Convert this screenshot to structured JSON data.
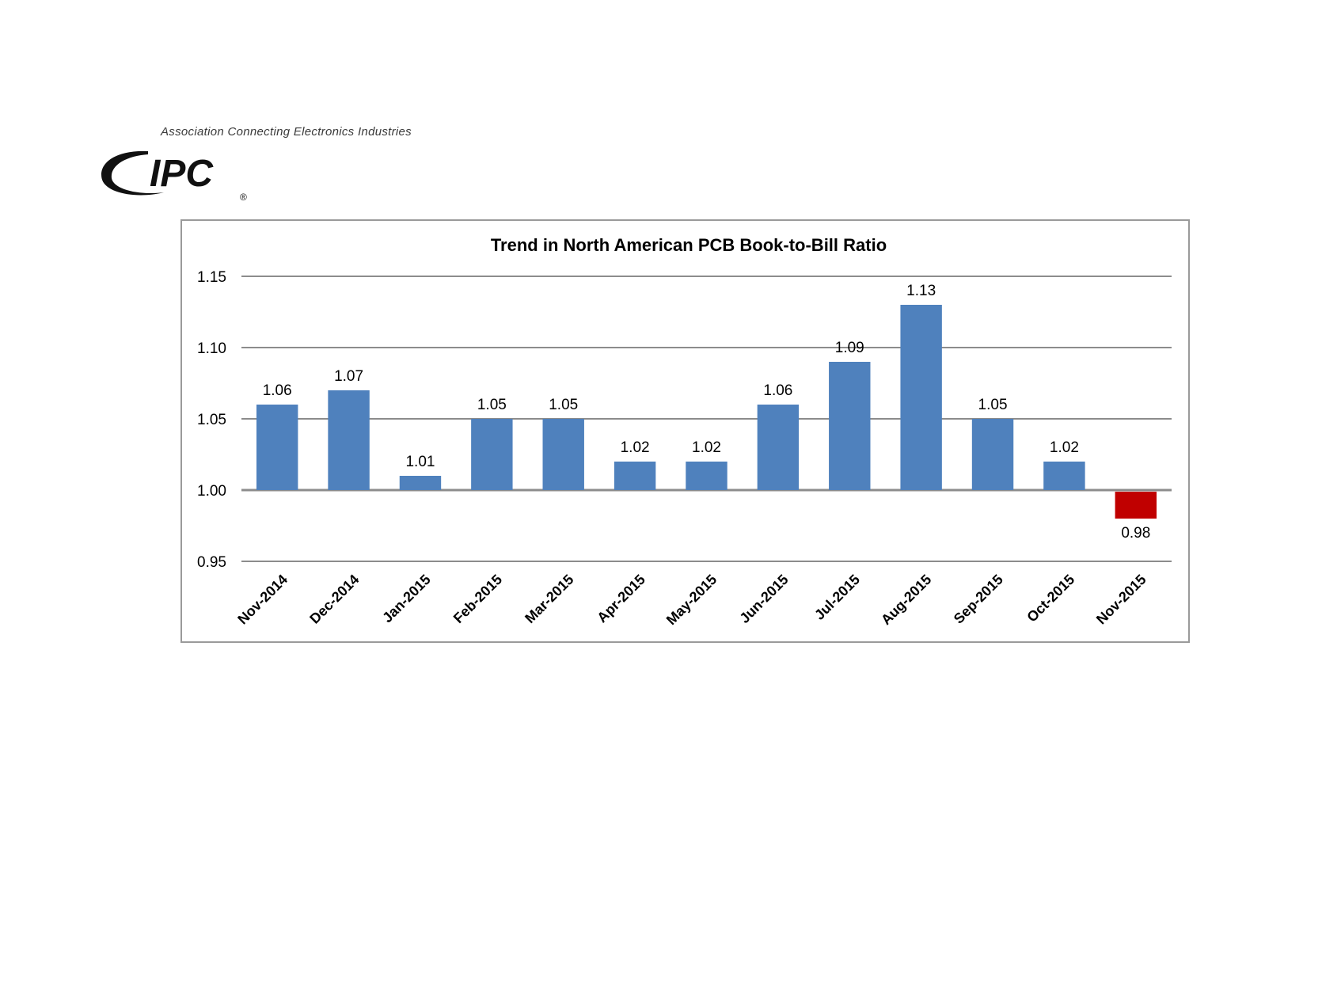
{
  "logo": {
    "tagline": "Association Connecting Electronics Industries",
    "wordmark": "IPC",
    "registered": "®"
  },
  "colors": {
    "bar": "#4f81bd",
    "bar_negative": "#c00000",
    "grid": "#8c8c8c",
    "frame": "#9a9a9a",
    "text": "#000000"
  },
  "chart_data": {
    "type": "bar",
    "title": "Trend in North American PCB Book-to-Bill Ratio",
    "xlabel": "",
    "ylabel": "",
    "baseline": 1.0,
    "ylim": [
      0.95,
      1.15
    ],
    "yticks": [
      "1.15",
      "1.10",
      "1.05",
      "1.00",
      "0.95"
    ],
    "ytick_values": [
      1.15,
      1.1,
      1.05,
      1.0,
      0.95
    ],
    "grid": true,
    "legend": "none",
    "categories": [
      "Nov-2014",
      "Dec-2014",
      "Jan-2015",
      "Feb-2015",
      "Mar-2015",
      "Apr-2015",
      "May-2015",
      "Jun-2015",
      "Jul-2015",
      "Aug-2015",
      "Sep-2015",
      "Oct-2015",
      "Nov-2015"
    ],
    "values": [
      1.06,
      1.07,
      1.01,
      1.05,
      1.05,
      1.02,
      1.02,
      1.06,
      1.09,
      1.13,
      1.05,
      1.02,
      0.98
    ],
    "value_labels": [
      "1.06",
      "1.07",
      "1.01",
      "1.05",
      "1.05",
      "1.02",
      "1.02",
      "1.06",
      "1.09",
      "1.13",
      "1.05",
      "1.02",
      "0.98"
    ]
  }
}
